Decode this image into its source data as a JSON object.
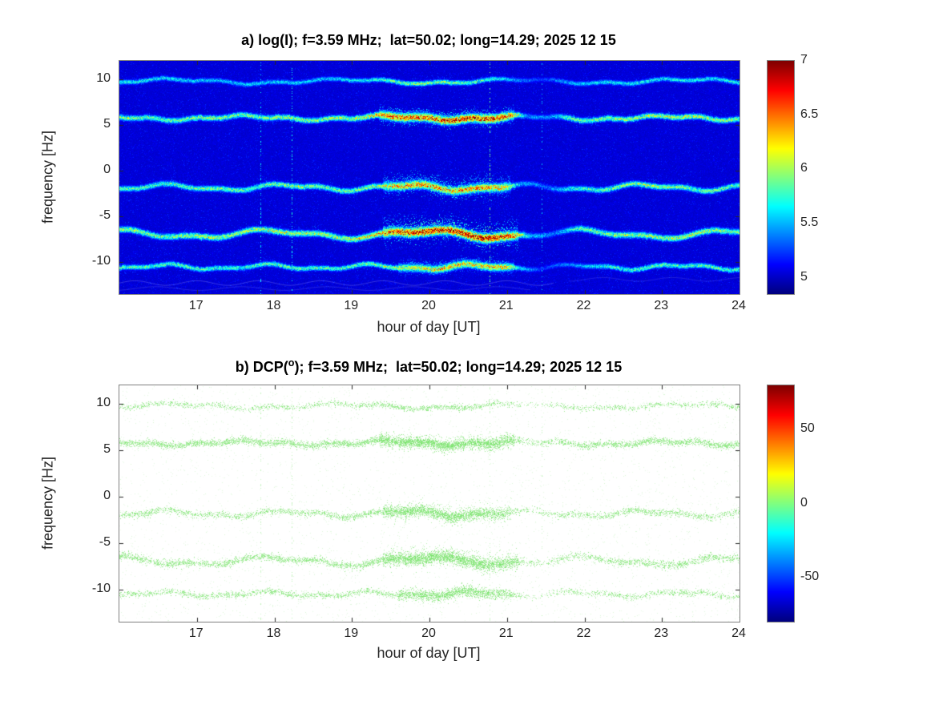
{
  "figure": {
    "background": "#ffffff",
    "title_color": "#000000",
    "axis_text_color": "#262626",
    "axis_box_color": "#808080"
  },
  "chart_data": [
    {
      "type": "heatmap",
      "panel": "a",
      "title": "a) log(I); f=3.59 MHz;  lat=50.02; long=14.29; 2025 12 15",
      "xlabel": "hour of day [UT]",
      "ylabel": "frequency [Hz]",
      "xlim": [
        16,
        24
      ],
      "ylim": [
        -13.5,
        12
      ],
      "xticks": [
        17,
        18,
        19,
        20,
        21,
        22,
        23,
        24
      ],
      "yticks": [
        10,
        5,
        0,
        -5,
        -10
      ],
      "colormap": "jet",
      "clim": [
        4.85,
        7
      ],
      "colorbar": {
        "range": [
          4.85,
          7
        ],
        "ticks": [
          5,
          5.5,
          6,
          6.5,
          7
        ]
      },
      "background_value": 5.0,
      "seed": 42,
      "bands": [
        {
          "freq": 9.8,
          "width": 0.17,
          "wiggle": [
            [
              0.22,
              0.45
            ],
            [
              0.12,
              1.4
            ]
          ],
          "profile": [
            [
              16,
              5.75
            ],
            [
              16.8,
              5.65
            ],
            [
              17.3,
              5.55
            ],
            [
              18,
              5.65
            ],
            [
              18.7,
              5.6
            ],
            [
              19.2,
              5.7
            ],
            [
              19.55,
              5.95
            ],
            [
              19.9,
              6.05
            ],
            [
              20.35,
              5.95
            ],
            [
              20.8,
              5.8
            ],
            [
              21.1,
              5.5
            ],
            [
              21.45,
              5.25
            ],
            [
              21.8,
              5.55
            ],
            [
              22.3,
              5.7
            ],
            [
              23,
              5.7
            ],
            [
              23.5,
              5.75
            ],
            [
              24,
              5.7
            ]
          ]
        },
        {
          "freq": 5.8,
          "width": 0.2,
          "wiggle": [
            [
              0.2,
              0.55
            ],
            [
              0.12,
              1.7
            ]
          ],
          "bloom": [
            19.35,
            21.1,
            1.3
          ],
          "profile": [
            [
              16,
              6.0
            ],
            [
              16.5,
              5.9
            ],
            [
              17,
              6.05
            ],
            [
              17.6,
              5.95
            ],
            [
              18.1,
              6.1
            ],
            [
              18.6,
              6.0
            ],
            [
              19,
              6.1
            ],
            [
              19.35,
              6.45
            ],
            [
              19.6,
              6.7
            ],
            [
              19.9,
              6.65
            ],
            [
              20.2,
              6.8
            ],
            [
              20.6,
              6.85
            ],
            [
              20.95,
              6.8
            ],
            [
              21.1,
              6.3
            ],
            [
              21.25,
              5.5
            ],
            [
              21.55,
              5.45
            ],
            [
              21.8,
              5.95
            ],
            [
              22.2,
              6.0
            ],
            [
              22.7,
              6.05
            ],
            [
              23.15,
              6.15
            ],
            [
              23.5,
              6.1
            ],
            [
              24,
              6.0
            ]
          ]
        },
        {
          "freq": -1.8,
          "width": 0.2,
          "wiggle": [
            [
              0.28,
              0.65
            ],
            [
              0.14,
              1.5
            ]
          ],
          "bloom": [
            19.4,
            21.05,
            1.8
          ],
          "profile": [
            [
              16,
              5.9
            ],
            [
              16.6,
              5.85
            ],
            [
              17.2,
              6.0
            ],
            [
              17.8,
              5.9
            ],
            [
              18.3,
              6.05
            ],
            [
              18.8,
              5.95
            ],
            [
              19.3,
              6.05
            ],
            [
              19.55,
              6.4
            ],
            [
              19.9,
              6.55
            ],
            [
              20.3,
              6.45
            ],
            [
              20.7,
              6.55
            ],
            [
              21,
              6.3
            ],
            [
              21.15,
              5.6
            ],
            [
              21.5,
              5.35
            ],
            [
              21.85,
              5.8
            ],
            [
              22.3,
              5.95
            ],
            [
              22.8,
              6.1
            ],
            [
              23.2,
              6.0
            ],
            [
              23.6,
              5.95
            ],
            [
              24,
              5.9
            ]
          ]
        },
        {
          "freq": -6.9,
          "width": 0.22,
          "wiggle": [
            [
              0.38,
              0.5
            ],
            [
              0.18,
              1.2
            ]
          ],
          "bloom": [
            19.4,
            21.15,
            2.2
          ],
          "profile": [
            [
              16,
              6.05
            ],
            [
              16.5,
              5.95
            ],
            [
              17.05,
              6.15
            ],
            [
              17.55,
              6.0
            ],
            [
              18.05,
              6.2
            ],
            [
              18.55,
              6.05
            ],
            [
              19,
              6.15
            ],
            [
              19.4,
              6.5
            ],
            [
              19.7,
              6.8
            ],
            [
              20,
              6.9
            ],
            [
              20.4,
              6.85
            ],
            [
              20.8,
              6.95
            ],
            [
              21.1,
              6.55
            ],
            [
              21.3,
              5.6
            ],
            [
              21.6,
              5.4
            ],
            [
              21.95,
              5.9
            ],
            [
              22.4,
              6.0
            ],
            [
              22.9,
              6.05
            ],
            [
              23.4,
              6.15
            ],
            [
              23.8,
              6.0
            ],
            [
              24,
              5.95
            ]
          ]
        },
        {
          "freq": -10.5,
          "width": 0.18,
          "wiggle": [
            [
              0.22,
              0.75
            ],
            [
              0.12,
              1.6
            ]
          ],
          "bloom": [
            19.6,
            21.1,
            1.0
          ],
          "profile": [
            [
              16,
              5.85
            ],
            [
              16.8,
              5.9
            ],
            [
              17.5,
              5.8
            ],
            [
              18.2,
              5.95
            ],
            [
              18.8,
              5.85
            ],
            [
              19.4,
              6.0
            ],
            [
              19.8,
              6.2
            ],
            [
              20.2,
              6.4
            ],
            [
              20.6,
              6.3
            ],
            [
              20.95,
              6.45
            ],
            [
              21.15,
              5.7
            ],
            [
              21.45,
              5.25
            ],
            [
              21.9,
              5.5
            ],
            [
              22.3,
              5.8
            ],
            [
              22.8,
              5.9
            ],
            [
              23.3,
              5.85
            ],
            [
              23.8,
              5.9
            ],
            [
              24,
              5.85
            ]
          ]
        }
      ],
      "vlines": [
        {
          "t": 17.82,
          "value": 5.55,
          "density": 0.4
        },
        {
          "t": 18.22,
          "value": 5.6,
          "density": 0.45
        },
        {
          "t": 20.78,
          "value": 5.8,
          "density": 0.5
        },
        {
          "t": 21.45,
          "value": 5.45,
          "density": 0.3
        }
      ],
      "white_curves": [
        {
          "freq": -12.3,
          "amp": 0.25,
          "period": 0.8,
          "t0": 16,
          "t1": 21.6,
          "alpha": 0.2
        },
        {
          "freq": -12.9,
          "amp": 0.2,
          "period": 1.1,
          "t0": 16,
          "t1": 21.3,
          "alpha": 0.14
        },
        {
          "freq": -11.9,
          "amp": 0.2,
          "period": 0.9,
          "t0": 21.8,
          "t1": 24,
          "alpha": 0.12
        }
      ]
    },
    {
      "type": "heatmap",
      "panel": "b",
      "title": "b) DCP(°); f=3.59 MHz;  lat=50.02; long=14.29; 2025 12 15",
      "title_parts": {
        "pre": "b) DCP(",
        "sup": "o",
        "post": "); f=3.59 MHz;  lat=50.02; long=14.29; 2025 12 15"
      },
      "xlabel": "hour of day [UT]",
      "ylabel": "frequency [Hz]",
      "xlim": [
        16,
        24
      ],
      "ylim": [
        -13.5,
        12
      ],
      "xticks": [
        17,
        18,
        19,
        20,
        21,
        22,
        23,
        24
      ],
      "yticks": [
        10,
        5,
        0,
        -5,
        -10
      ],
      "colormap": "jet",
      "colorbar": {
        "range": [
          -80,
          80
        ],
        "ticks": [
          50,
          0,
          -50
        ]
      },
      "render": "density",
      "dot_color": [
        110,
        225,
        95
      ],
      "background_density": 0.018,
      "seed": 7,
      "bands": [
        {
          "freq": 9.8,
          "width": 0.17,
          "wiggle": [
            [
              0.22,
              0.45
            ],
            [
              0.12,
              1.4
            ]
          ],
          "profile": [
            [
              16,
              0.5
            ],
            [
              17,
              0.45
            ],
            [
              18,
              0.45
            ],
            [
              19,
              0.5
            ],
            [
              19.5,
              0.7
            ],
            [
              20.4,
              0.65
            ],
            [
              21,
              0.45
            ],
            [
              21.3,
              0.15
            ],
            [
              21.7,
              0.4
            ],
            [
              22.5,
              0.5
            ],
            [
              23.2,
              0.45
            ],
            [
              24,
              0.5
            ]
          ]
        },
        {
          "freq": 5.8,
          "width": 0.2,
          "wiggle": [
            [
              0.2,
              0.55
            ],
            [
              0.12,
              1.7
            ]
          ],
          "bloom": [
            19.35,
            21.1,
            1.3
          ],
          "profile": [
            [
              16,
              0.85
            ],
            [
              17,
              0.8
            ],
            [
              18,
              0.85
            ],
            [
              19,
              0.85
            ],
            [
              19.4,
              0.95
            ],
            [
              20.5,
              0.95
            ],
            [
              21.05,
              0.85
            ],
            [
              21.3,
              0.3
            ],
            [
              21.7,
              0.6
            ],
            [
              22,
              0.75
            ],
            [
              23,
              0.8
            ],
            [
              24,
              0.85
            ]
          ]
        },
        {
          "freq": -1.8,
          "width": 0.2,
          "wiggle": [
            [
              0.28,
              0.65
            ],
            [
              0.14,
              1.5
            ]
          ],
          "bloom": [
            19.4,
            21.05,
            1.8
          ],
          "profile": [
            [
              16,
              0.6
            ],
            [
              17,
              0.55
            ],
            [
              18,
              0.6
            ],
            [
              19,
              0.6
            ],
            [
              19.5,
              0.9
            ],
            [
              20.5,
              0.9
            ],
            [
              21,
              0.65
            ],
            [
              21.3,
              0.2
            ],
            [
              21.8,
              0.45
            ],
            [
              22.5,
              0.6
            ],
            [
              23.3,
              0.55
            ],
            [
              24,
              0.55
            ]
          ]
        },
        {
          "freq": -6.9,
          "width": 0.22,
          "wiggle": [
            [
              0.38,
              0.5
            ],
            [
              0.18,
              1.2
            ]
          ],
          "bloom": [
            19.4,
            21.15,
            2.0
          ],
          "profile": [
            [
              16,
              0.7
            ],
            [
              17,
              0.65
            ],
            [
              18,
              0.7
            ],
            [
              19,
              0.7
            ],
            [
              19.5,
              0.95
            ],
            [
              20.6,
              0.95
            ],
            [
              21.1,
              0.75
            ],
            [
              21.35,
              0.25
            ],
            [
              21.9,
              0.5
            ],
            [
              22.6,
              0.6
            ],
            [
              23.4,
              0.65
            ],
            [
              24,
              0.6
            ]
          ]
        },
        {
          "freq": -10.5,
          "width": 0.18,
          "wiggle": [
            [
              0.22,
              0.75
            ],
            [
              0.12,
              1.6
            ]
          ],
          "bloom": [
            19.6,
            21.05,
            0.9
          ],
          "profile": [
            [
              16,
              0.5
            ],
            [
              17,
              0.55
            ],
            [
              18,
              0.55
            ],
            [
              19,
              0.55
            ],
            [
              19.6,
              0.75
            ],
            [
              20.5,
              0.8
            ],
            [
              21.05,
              0.55
            ],
            [
              21.3,
              0.15
            ],
            [
              21.9,
              0.4
            ],
            [
              22.5,
              0.5
            ],
            [
              23.3,
              0.5
            ],
            [
              24,
              0.45
            ]
          ]
        }
      ],
      "vlines": [
        {
          "t": 17.82,
          "density": 0.3
        },
        {
          "t": 18.22,
          "density": 0.35
        },
        {
          "t": 20.78,
          "density": 0.25
        },
        {
          "t": 21.45,
          "density": 0.2
        }
      ]
    }
  ]
}
